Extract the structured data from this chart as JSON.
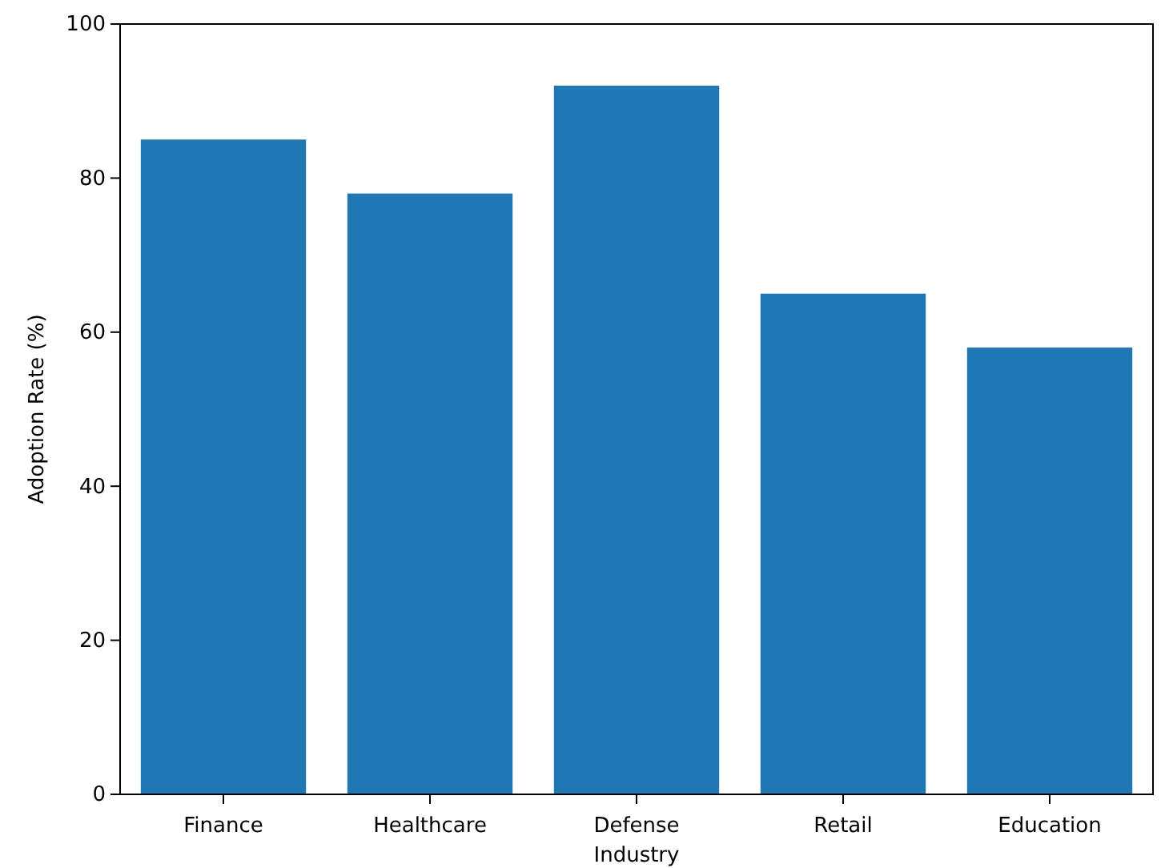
{
  "chart_data": {
    "type": "bar",
    "xlabel": "Industry",
    "ylabel": "Adoption Rate (%)",
    "categories": [
      "Finance",
      "Healthcare",
      "Defense",
      "Retail",
      "Education"
    ],
    "values": [
      85,
      78,
      92,
      65,
      58
    ],
    "color": "#1f77b4",
    "ylim": [
      0,
      100
    ],
    "yticks": [
      0,
      20,
      40,
      60,
      80,
      100
    ],
    "grid": false
  }
}
